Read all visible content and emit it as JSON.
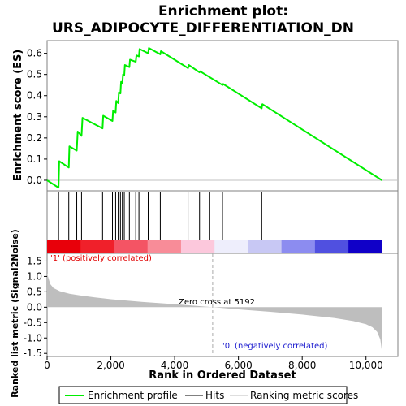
{
  "chart_data": [
    {
      "type": "line",
      "title": "Enrichment plot:",
      "subtitle": "URS_ADIPOCYTE_DIFFERENTIATION_DN",
      "ylabel": "Enrichment score (ES)",
      "ylim": [
        -0.05,
        0.66
      ],
      "yticks": [
        "0.0",
        "0.1",
        "0.2",
        "0.3",
        "0.4",
        "0.5",
        "0.6"
      ],
      "ytick_values": [
        0.0,
        0.1,
        0.2,
        0.3,
        0.4,
        0.5,
        0.6
      ],
      "xlim": [
        0,
        11000
      ],
      "series": [
        {
          "name": "Enrichment profile",
          "color": "#00ee00",
          "x": [
            0,
            360,
            380,
            680,
            700,
            930,
            960,
            1080,
            1110,
            1740,
            1760,
            2050,
            2070,
            2150,
            2170,
            2230,
            2250,
            2300,
            2320,
            2360,
            2380,
            2420,
            2440,
            2580,
            2600,
            2780,
            2800,
            2880,
            2900,
            3170,
            3190,
            3550,
            3570,
            4420,
            4440,
            4780,
            4800,
            5500,
            5520,
            6730,
            6750,
            10500
          ],
          "y": [
            0.0,
            -0.035,
            0.09,
            0.06,
            0.16,
            0.14,
            0.23,
            0.21,
            0.295,
            0.245,
            0.305,
            0.28,
            0.33,
            0.32,
            0.375,
            0.365,
            0.415,
            0.41,
            0.465,
            0.46,
            0.5,
            0.495,
            0.545,
            0.535,
            0.57,
            0.56,
            0.59,
            0.585,
            0.62,
            0.6,
            0.625,
            0.595,
            0.61,
            0.53,
            0.545,
            0.51,
            0.515,
            0.45,
            0.455,
            0.34,
            0.36,
            0.0
          ]
        }
      ]
    },
    {
      "type": "scatter",
      "name": "Hits",
      "hits_x": [
        360,
        680,
        930,
        1080,
        1740,
        2050,
        2150,
        2230,
        2300,
        2360,
        2420,
        2580,
        2780,
        2880,
        3170,
        3550,
        4420,
        4780,
        5100,
        5500,
        6730
      ],
      "heatbar_colors": [
        "#e8000a",
        "#f0202a",
        "#f45464",
        "#f88c98",
        "#fcc8dc",
        "#eeeefc",
        "#c8c8f4",
        "#8c8cf0",
        "#5050e0",
        "#1000c8"
      ]
    },
    {
      "type": "area",
      "ylabel": "Ranked list metric (Signal2Noise)",
      "xlabel": "Rank in Ordered Dataset",
      "ylim": [
        -1.6,
        1.75
      ],
      "yticks": [
        "-1.5",
        "-1.0",
        "-0.5",
        "0.0",
        "0.5",
        "1.0",
        "1.5"
      ],
      "ytick_values": [
        -1.5,
        -1.0,
        -0.5,
        0.0,
        0.5,
        1.0,
        1.5
      ],
      "xlim": [
        0,
        11000
      ],
      "xticks": [
        "0",
        "2,000",
        "4,000",
        "6,000",
        "8,000",
        "10,000"
      ],
      "xtick_values": [
        0,
        2000,
        4000,
        6000,
        8000,
        10000
      ],
      "x": [
        0,
        40,
        100,
        200,
        400,
        700,
        1000,
        1500,
        2000,
        3000,
        4000,
        5192,
        6000,
        7000,
        8000,
        9000,
        9600,
        10000,
        10200,
        10350,
        10450,
        10500
      ],
      "y": [
        1.1,
        0.95,
        0.75,
        0.62,
        0.52,
        0.44,
        0.39,
        0.32,
        0.26,
        0.17,
        0.1,
        0.0,
        -0.07,
        -0.15,
        -0.24,
        -0.35,
        -0.45,
        -0.55,
        -0.65,
        -0.8,
        -1.05,
        -1.45
      ],
      "color": "#bebebe",
      "zero_cross_x": 5192,
      "annotations": {
        "positive": "'1' (positively correlated)",
        "negative": "'0' (negatively correlated)",
        "zero_cross": "Zero cross at 5192"
      }
    }
  ],
  "legend": {
    "items": [
      {
        "label": "Enrichment profile",
        "color": "#00ee00"
      },
      {
        "label": "Hits",
        "color": "#000000"
      },
      {
        "label": "Ranking metric scores",
        "color": "#bebebe"
      }
    ]
  }
}
